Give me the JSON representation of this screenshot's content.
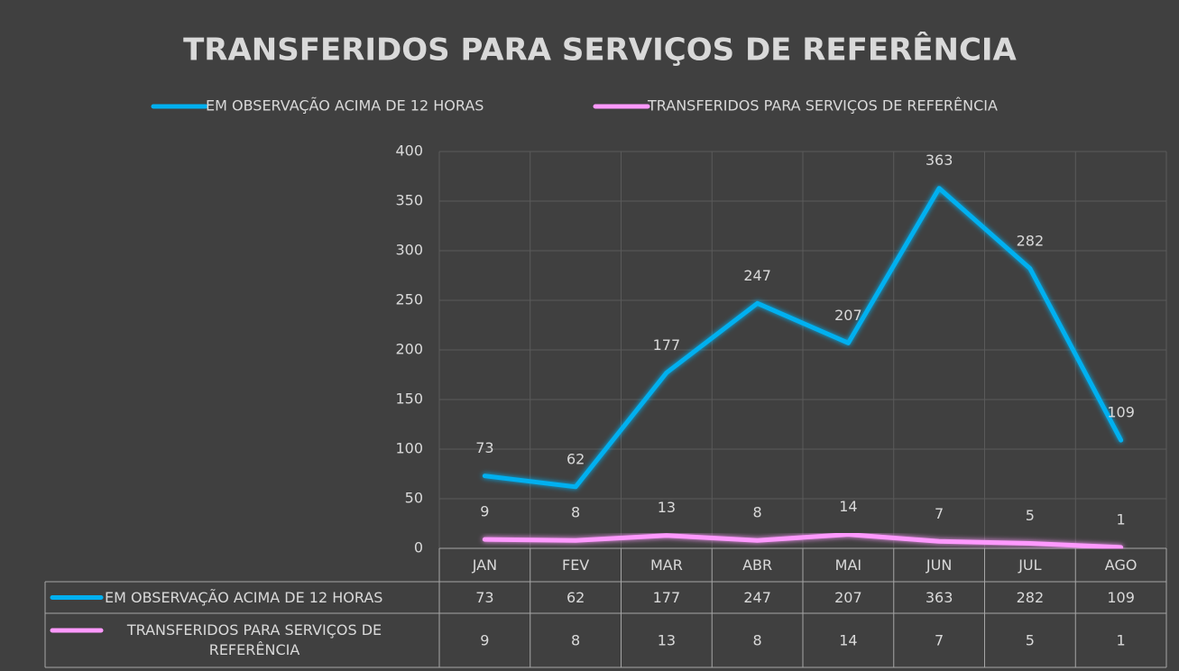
{
  "chart_data": {
    "type": "line",
    "title": "TRANSFERIDOS PARA SERVIÇOS DE REFERÊNCIA",
    "categories": [
      "JAN",
      "FEV",
      "MAR",
      "ABR",
      "MAI",
      "JUN",
      "JUL",
      "AGO"
    ],
    "series": [
      {
        "name": "EM OBSERVAÇÃO ACIMA DE 12 HORAS",
        "color": "#00b0f0",
        "values": [
          73,
          62,
          177,
          247,
          207,
          363,
          282,
          109
        ]
      },
      {
        "name": "TRANSFERIDOS PARA SERVIÇOS DE REFERÊNCIA",
        "color": "#ff99ff",
        "values": [
          9,
          8,
          13,
          8,
          14,
          7,
          5,
          1
        ]
      }
    ],
    "ylim": [
      0,
      400
    ],
    "yticks": [
      0,
      50,
      100,
      150,
      200,
      250,
      300,
      350,
      400
    ],
    "grid": true,
    "legend": "top",
    "data_table": true
  }
}
